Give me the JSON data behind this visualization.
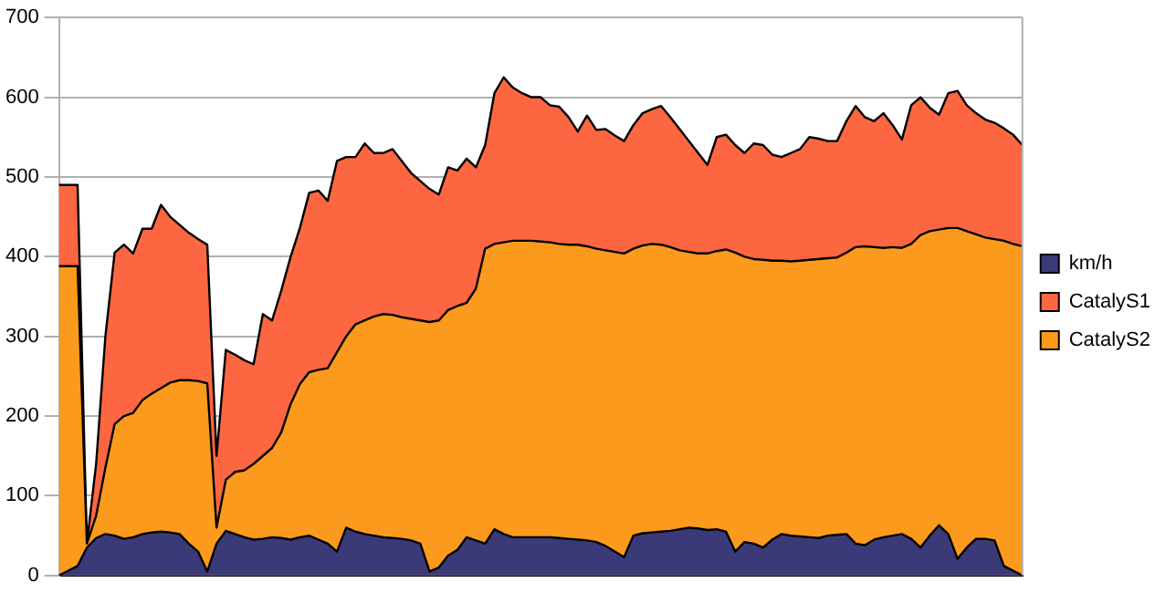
{
  "chart_data": {
    "type": "area",
    "categories": [
      null,
      null,
      null,
      null,
      null,
      null,
      null,
      null,
      null,
      null,
      null,
      null,
      null,
      null,
      null,
      null,
      null,
      null,
      null,
      null,
      null,
      null,
      null,
      null,
      null,
      null,
      null,
      null,
      null,
      null,
      null,
      null,
      null,
      null,
      null,
      null,
      null,
      null,
      null,
      null,
      null,
      null,
      null,
      null,
      null,
      null,
      null,
      null,
      null,
      null,
      null,
      null,
      null,
      null,
      null,
      null,
      null,
      null,
      null,
      null,
      null,
      null,
      null,
      null,
      null,
      null,
      null,
      null,
      null,
      null,
      null,
      null,
      null,
      null,
      null,
      null,
      null,
      null,
      null,
      null,
      null,
      null,
      null,
      null,
      null,
      null,
      null,
      null,
      null,
      null,
      null,
      null,
      null,
      null,
      null,
      null,
      null,
      null,
      null,
      null,
      null,
      null,
      null,
      null,
      null
    ],
    "series": [
      {
        "name": "km/h",
        "color": "#3a3a78",
        "values": [
          0,
          6,
          12,
          35,
          47,
          52,
          50,
          46,
          48,
          52,
          54,
          55,
          54,
          52,
          40,
          30,
          5,
          40,
          56,
          52,
          48,
          45,
          46,
          48,
          47,
          45,
          48,
          50,
          45,
          40,
          30,
          60,
          55,
          52,
          50,
          48,
          47,
          46,
          44,
          40,
          5,
          10,
          25,
          32,
          48,
          44,
          40,
          58,
          52,
          48,
          48,
          48,
          48,
          48,
          47,
          46,
          45,
          44,
          42,
          37,
          30,
          23,
          50,
          53,
          54,
          55,
          56,
          58,
          60,
          59,
          57,
          58,
          55,
          30,
          42,
          40,
          35,
          45,
          52,
          50,
          49,
          48,
          47,
          50,
          51,
          52,
          40,
          38,
          45,
          48,
          50,
          52,
          46,
          35,
          50,
          63,
          52,
          21,
          35,
          46,
          46,
          44,
          12,
          6,
          0
        ]
      },
      {
        "name": "CatalyS1",
        "color": "#fc6640",
        "values": [
          490,
          490,
          490,
          40,
          140,
          300,
          405,
          415,
          404,
          435,
          435,
          465,
          450,
          440,
          430,
          422,
          415,
          150,
          283,
          277,
          270,
          265,
          328,
          320,
          358,
          400,
          436,
          480,
          483,
          470,
          520,
          525,
          525,
          542,
          530,
          530,
          535,
          520,
          505,
          495,
          485,
          478,
          512,
          508,
          523,
          512,
          540,
          605,
          625,
          612,
          605,
          600,
          600,
          590,
          588,
          575,
          557,
          577,
          559,
          560,
          552,
          545,
          565,
          580,
          585,
          589,
          575,
          560,
          545,
          530,
          515,
          550,
          553,
          540,
          530,
          542,
          540,
          528,
          525,
          530,
          535,
          550,
          548,
          545,
          545,
          570,
          589,
          575,
          570,
          580,
          565,
          547,
          590,
          600,
          587,
          578,
          605,
          608,
          590,
          580,
          572,
          568,
          561,
          553,
          540
        ]
      },
      {
        "name": "CatalyS2",
        "color": "#fb9a1c",
        "values": [
          388,
          388,
          388,
          40,
          75,
          135,
          190,
          200,
          204,
          220,
          228,
          235,
          242,
          245,
          245,
          244,
          241,
          60,
          120,
          130,
          132,
          140,
          150,
          160,
          180,
          215,
          240,
          255,
          258,
          260,
          280,
          300,
          315,
          320,
          325,
          328,
          327,
          324,
          322,
          320,
          318,
          320,
          333,
          338,
          342,
          360,
          410,
          416,
          418,
          420,
          420,
          420,
          419,
          418,
          416,
          415,
          415,
          413,
          410,
          408,
          406,
          404,
          410,
          414,
          416,
          415,
          412,
          408,
          406,
          404,
          404,
          407,
          409,
          405,
          400,
          397,
          396,
          395,
          395,
          394,
          395,
          396,
          397,
          398,
          399,
          405,
          412,
          413,
          412,
          411,
          412,
          411,
          416,
          427,
          432,
          434,
          436,
          436,
          432,
          428,
          424,
          422,
          420,
          416,
          413
        ]
      }
    ],
    "ylim": [
      0,
      700
    ],
    "yticks": [
      0,
      100,
      200,
      300,
      400,
      500,
      600,
      700
    ],
    "grid": "y",
    "legend": "right",
    "tick_labels": "y"
  }
}
